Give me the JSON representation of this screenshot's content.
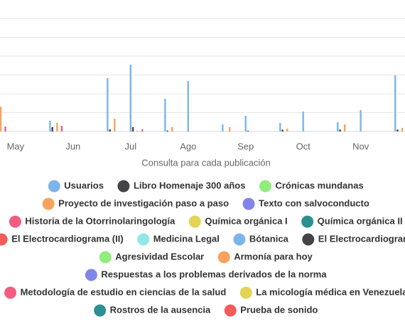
{
  "chart_data": {
    "type": "bar",
    "x_label": "Consulta para cada publicación",
    "x": [
      4.62,
      5.6,
      6.6,
      7.0,
      7.6,
      8.0,
      8.6,
      9.0,
      9.6,
      10.0,
      10.6,
      11.0,
      11.6
    ],
    "xlim": [
      4.73,
      11.77
    ],
    "xticks": [
      {
        "value": 5,
        "label": "May"
      },
      {
        "value": 6,
        "label": "Jun"
      },
      {
        "value": 7,
        "label": "Jul"
      },
      {
        "value": 8,
        "label": "Ago"
      },
      {
        "value": 9,
        "label": "Sep"
      },
      {
        "value": 10,
        "label": "Oct"
      },
      {
        "value": 11,
        "label": "Nov"
      }
    ],
    "ylim": [
      0,
      7
    ],
    "yticks": [
      0,
      1,
      2,
      3,
      4,
      5,
      6
    ],
    "grid": true,
    "series": [
      {
        "name": "Usuarios",
        "color": "#7cb5ec",
        "values": [
          0,
          0.57,
          2.83,
          3.55,
          1.74,
          2.68,
          0.38,
          0.83,
          0.45,
          1.06,
          0.49,
          1.13,
          2.98
        ]
      },
      {
        "name": "Libro Homenaje 300 años",
        "color": "#434348",
        "values": [
          0,
          0.23,
          0.11,
          0.23,
          0.05,
          0,
          0,
          0.04,
          0.1,
          0,
          0.1,
          0,
          0.1
        ]
      },
      {
        "name": "Crónicas mundanas",
        "color": "#90ed7d",
        "values": [
          0,
          0,
          0,
          0,
          0,
          0,
          0,
          0,
          0,
          0,
          0,
          0,
          0
        ]
      },
      {
        "name": "Proyecto de investigación paso a paso",
        "color": "#f7a35c",
        "values": [
          1.32,
          0.45,
          0.68,
          0.04,
          0.23,
          0,
          0.23,
          0,
          0.15,
          0,
          0.38,
          0,
          0.19
        ]
      },
      {
        "name": "Texto con salvoconducto",
        "color": "#8085e9",
        "values": [
          0,
          0,
          0,
          0,
          0,
          0,
          0,
          0,
          0,
          0,
          0,
          0,
          0
        ]
      },
      {
        "name": "Historia de la Otorrinolaringología",
        "color": "#f15c80",
        "values": [
          0.26,
          0.3,
          0,
          0.11,
          0,
          0,
          0,
          0,
          0,
          0,
          0,
          0,
          0
        ]
      },
      {
        "name": "Química orgánica I",
        "color": "#e4d354",
        "values": [
          0,
          0,
          0,
          0,
          0,
          0,
          0,
          0,
          0,
          0,
          0,
          0,
          0
        ]
      },
      {
        "name": "Química orgánica II",
        "color": "#2b908f",
        "values": [
          0,
          0,
          0,
          0,
          0,
          0,
          0,
          0,
          0,
          0,
          0,
          0,
          0
        ]
      },
      {
        "name": "El Electrocardiograma (II)",
        "color": "#f45b5b",
        "values": [
          0,
          0,
          0,
          0,
          0,
          0,
          0,
          0,
          0,
          0,
          0,
          0,
          0
        ]
      },
      {
        "name": "Medicina Legal",
        "color": "#91e8e1",
        "values": [
          0,
          0,
          0,
          0,
          0,
          0,
          0,
          0,
          0,
          0,
          0,
          0,
          0
        ]
      },
      {
        "name": "Bótanica",
        "color": "#7cb5ec",
        "values": [
          0,
          0,
          0,
          0,
          0,
          0,
          0,
          0,
          0,
          0,
          0,
          0,
          0
        ]
      },
      {
        "name": "El Electrocardiograma",
        "color": "#434348",
        "values": [
          0,
          0,
          0,
          0,
          0,
          0,
          0,
          0,
          0,
          0,
          0,
          0,
          0
        ]
      },
      {
        "name": "Agresividad Escolar",
        "color": "#90ed7d",
        "values": [
          0,
          0,
          0,
          0,
          0,
          0,
          0,
          0,
          0,
          0,
          0,
          0,
          0
        ]
      },
      {
        "name": "Armonía para hoy",
        "color": "#f7a35c",
        "values": [
          0,
          0,
          0,
          0,
          0,
          0,
          0,
          0,
          0,
          0,
          0,
          0,
          0
        ]
      },
      {
        "name": "Respuestas a los problemas derivados de la norma",
        "color": "#8085e9",
        "values": [
          0,
          0,
          0,
          0,
          0,
          0,
          0,
          0,
          0,
          0,
          0,
          0,
          0
        ]
      },
      {
        "name": "Metodología de estudio en ciencias de la salud",
        "color": "#f15c80",
        "values": [
          0,
          0,
          0,
          0,
          0,
          0,
          0,
          0,
          0,
          0,
          0,
          0,
          0
        ]
      },
      {
        "name": "La micología médica en Venezuela",
        "color": "#e4d354",
        "values": [
          0,
          0,
          0,
          0,
          0,
          0,
          0,
          0,
          0,
          0,
          0,
          0,
          0
        ]
      },
      {
        "name": "Rostros de la ausencia",
        "color": "#2b908f",
        "values": [
          0,
          0,
          0,
          0,
          0,
          0,
          0,
          0,
          0,
          0,
          0,
          0,
          0
        ]
      },
      {
        "name": "Prueba de sonido",
        "color": "#f45b5b",
        "values": [
          0,
          0,
          0,
          0,
          0,
          0,
          0,
          0,
          0,
          0,
          0,
          0,
          0
        ]
      }
    ]
  }
}
